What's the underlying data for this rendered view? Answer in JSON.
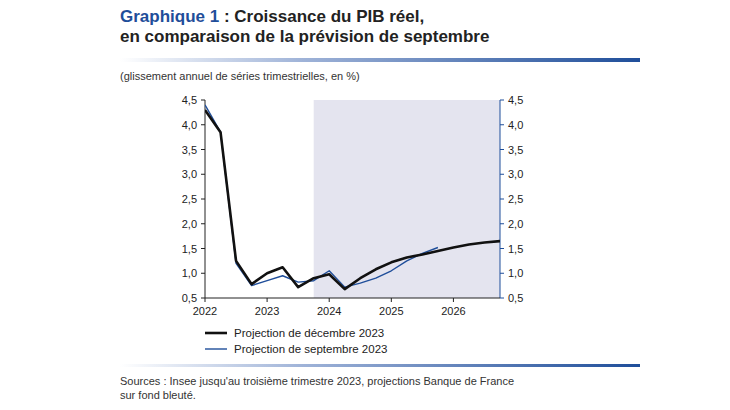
{
  "chart_data": {
    "type": "line",
    "title": [
      "Graphique 1 : Croissance du PIB réel,",
      "en comparaison de la prévision de septembre"
    ],
    "subtitle": "(glissement annuel de séries trimestrielles, en %)",
    "notes": [
      "Sources : Insee jusqu'au troisième trimestre 2023, projections Banque de France",
      "sur fond bleuté."
    ],
    "x": [
      2022,
      2022.25,
      2022.5,
      2022.75,
      2023,
      2023.25,
      2023.5,
      2023.75,
      2024,
      2024.25,
      2024.5,
      2024.75,
      2025,
      2025.25,
      2025.5,
      2025.75,
      2026,
      2026.25,
      2026.5,
      2026.75
    ],
    "xlim": [
      2022,
      2026.75
    ],
    "xticks": [
      2022,
      2023,
      2024,
      2025,
      2026
    ],
    "projection_start": 2023.75,
    "ylim": [
      0.5,
      4.5
    ],
    "yticks": [
      {
        "value": 0.5,
        "label": "0,5"
      },
      {
        "value": 1,
        "label": "1,0"
      },
      {
        "value": 1.5,
        "label": "1,5"
      },
      {
        "value": 2,
        "label": "2,0"
      },
      {
        "value": 2.5,
        "label": "2,5"
      },
      {
        "value": 3,
        "label": "3,0"
      },
      {
        "value": 3.5,
        "label": "3,5"
      },
      {
        "value": 4,
        "label": "4,0"
      },
      {
        "value": 4.5,
        "label": "4,5"
      }
    ],
    "y2lim": [
      0.5,
      4.5
    ],
    "y2ticks": [
      {
        "value": 0.5,
        "label": "0,5"
      },
      {
        "value": 1,
        "label": "1,0"
      },
      {
        "value": 1.5,
        "label": "1,5"
      },
      {
        "value": 2,
        "label": "2,0"
      },
      {
        "value": 2.5,
        "label": "2,5"
      },
      {
        "value": 3,
        "label": "3,0"
      },
      {
        "value": 3.5,
        "label": "3,5"
      },
      {
        "value": 4,
        "label": "4,0"
      },
      {
        "value": 4.5,
        "label": "4,5"
      }
    ],
    "grid": false,
    "legend": "bottom-left",
    "series": [
      {
        "name": "Projection de décembre 2023",
        "color": "#111111",
        "values": [
          4.3,
          3.85,
          1.25,
          0.78,
          1.0,
          1.12,
          0.72,
          0.9,
          0.98,
          0.68,
          0.9,
          1.08,
          1.22,
          1.32,
          1.38,
          1.45,
          1.52,
          1.58,
          1.62,
          1.65
        ]
      },
      {
        "name": "Projection de septembre 2023",
        "color": "#1f4e9a",
        "values": [
          4.4,
          3.85,
          1.2,
          0.75,
          0.85,
          0.95,
          0.82,
          0.85,
          1.05,
          0.72,
          0.8,
          0.9,
          1.05,
          1.25,
          1.4,
          1.52,
          null,
          null,
          null,
          null
        ]
      }
    ]
  }
}
